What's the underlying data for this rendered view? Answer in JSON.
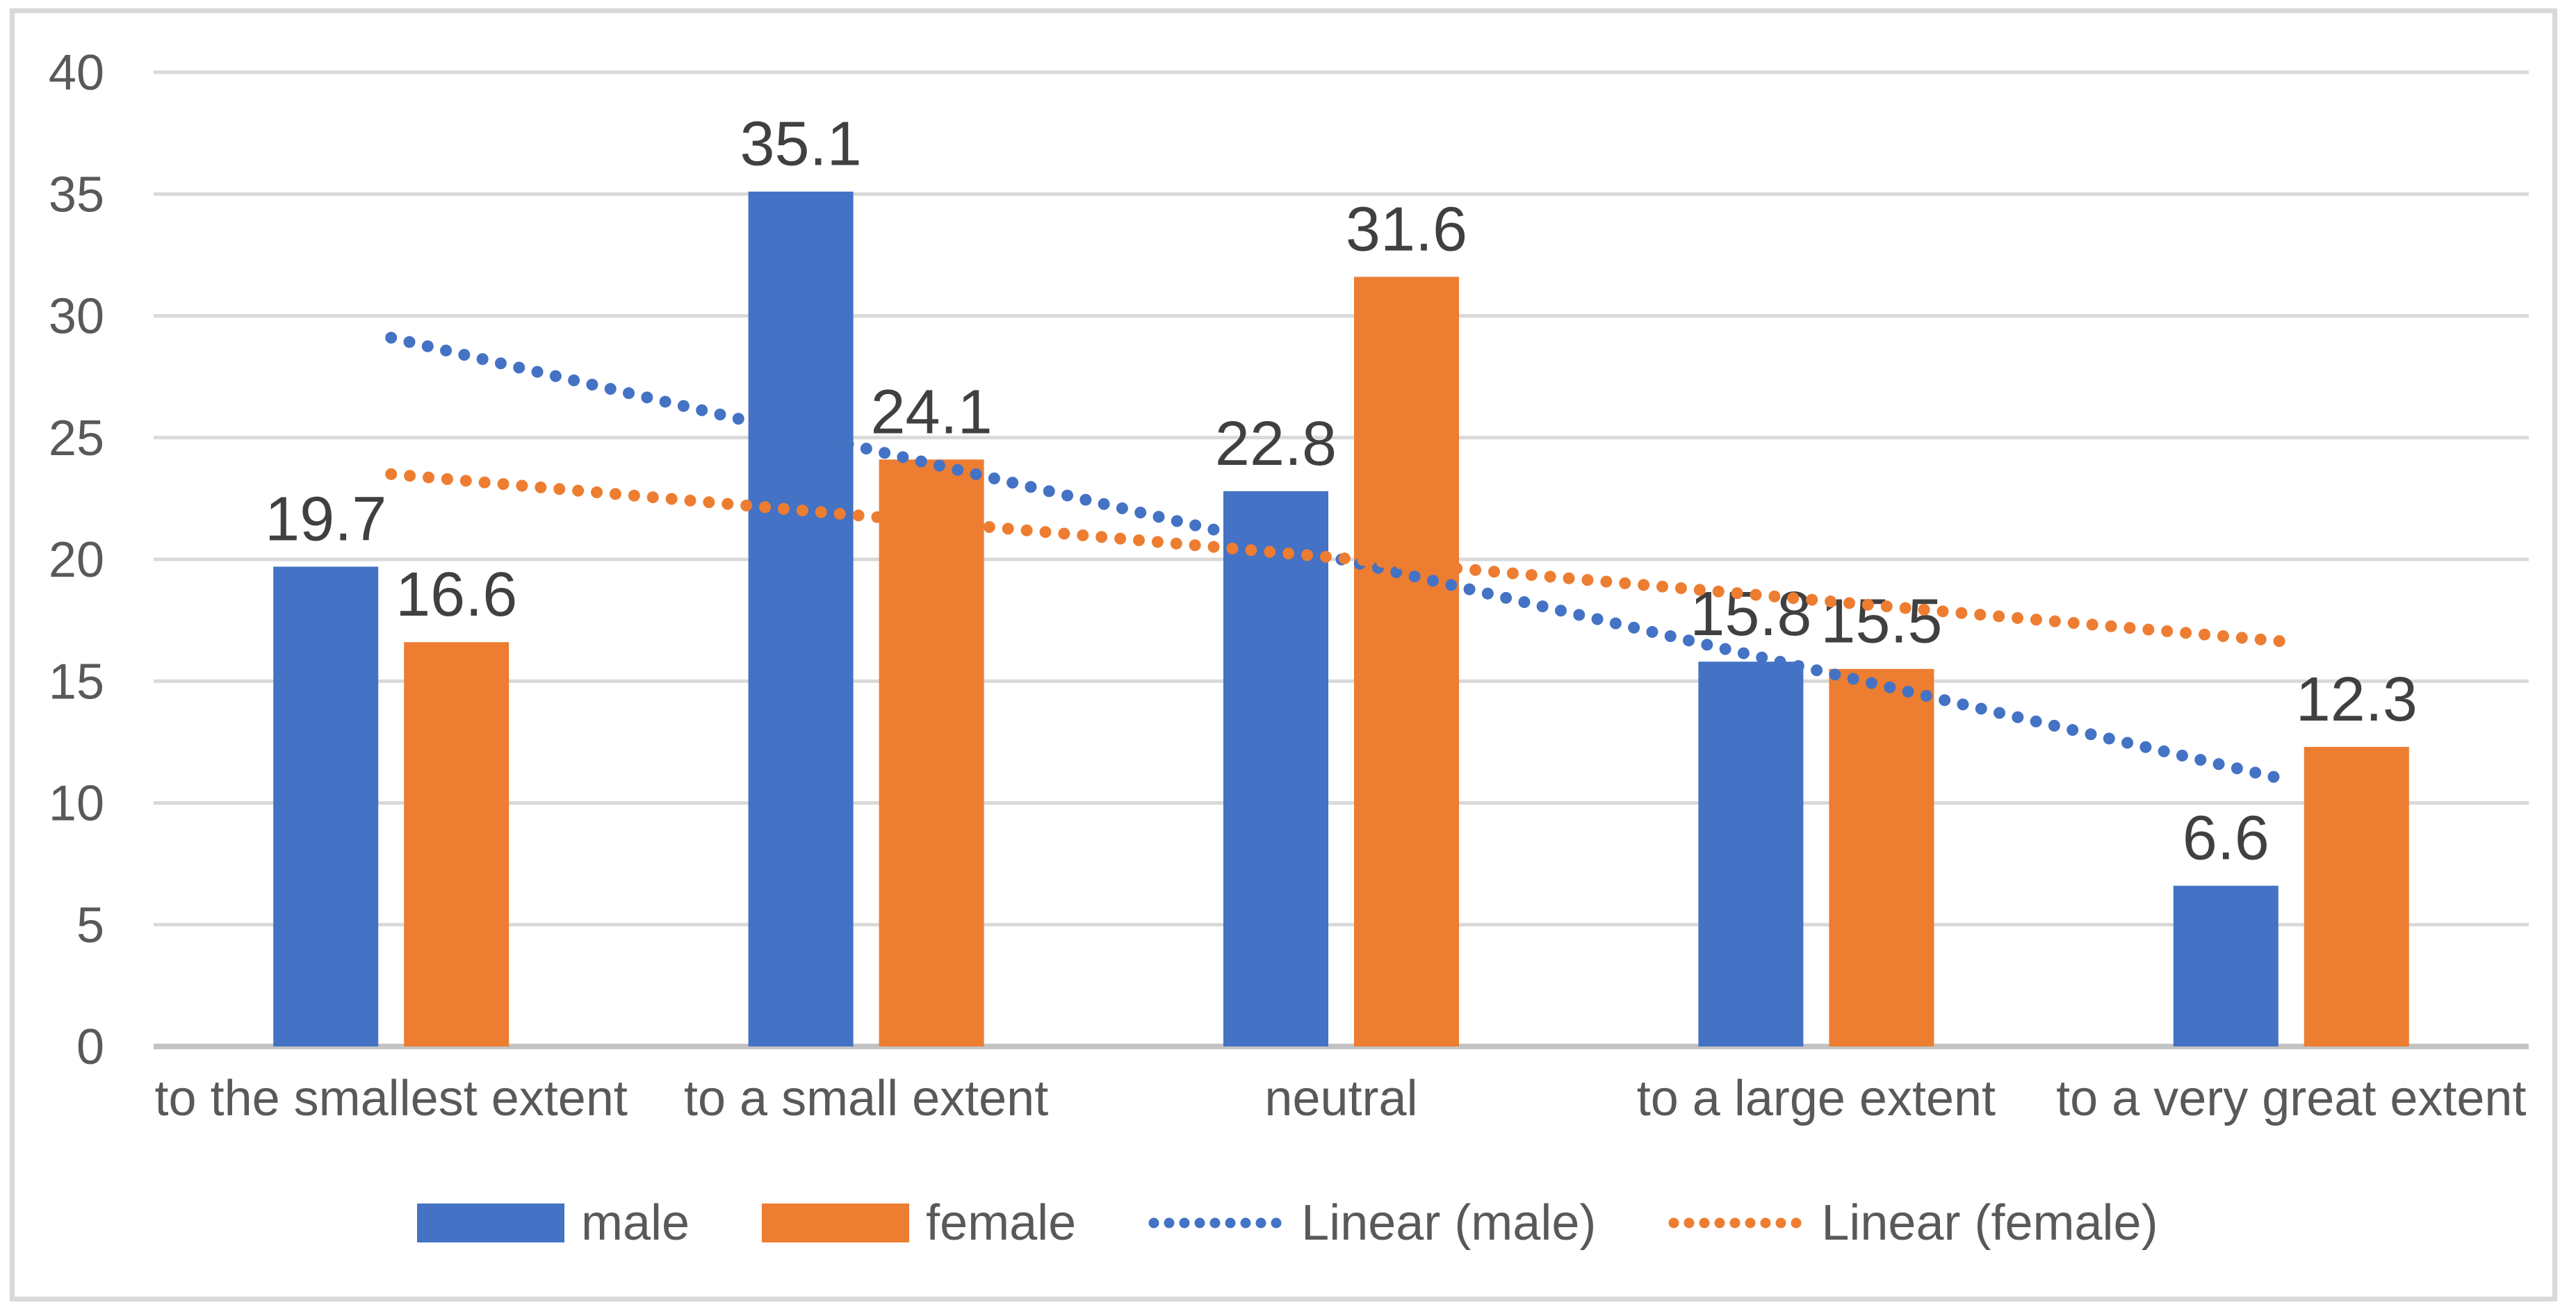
{
  "chart_data": {
    "type": "bar",
    "title": "",
    "categories": [
      "to the smallest extent",
      "to a small extent",
      "neutral",
      "to a large extent",
      "to a very great extent"
    ],
    "series": [
      {
        "name": "male",
        "color": "#4472C4",
        "values": [
          19.7,
          35.1,
          22.8,
          15.8,
          6.6
        ]
      },
      {
        "name": "female",
        "color": "#ED7D31",
        "values": [
          16.6,
          24.1,
          31.6,
          15.5,
          12.3
        ]
      }
    ],
    "data_labels": {
      "male": [
        "19.7",
        "35.1",
        "22.8",
        "15.8",
        "6.6"
      ],
      "female": [
        "16.6",
        "24.1",
        "31.6",
        "15.5",
        "12.3"
      ]
    },
    "trendlines": [
      {
        "name": "Linear (male)",
        "series": "male",
        "color": "#4472C4",
        "style": "dotted",
        "y_start": 29.1,
        "y_end": 10.9
      },
      {
        "name": "Linear (female)",
        "series": "female",
        "color": "#ED7D31",
        "style": "dotted",
        "y_start": 23.5,
        "y_end": 16.6
      }
    ],
    "xlabel": "",
    "ylabel": "",
    "ylim": [
      0,
      40
    ],
    "ytick_step": 5,
    "yticks": [
      "0",
      "5",
      "10",
      "15",
      "20",
      "25",
      "30",
      "35",
      "40"
    ],
    "grid": true,
    "legend_position": "bottom",
    "legend": [
      "male",
      "female",
      "Linear (male)",
      "Linear (female)"
    ],
    "colors": {
      "grid": "#D9D9D9",
      "axis_line": "#C3C3C3",
      "tick_label": "#595959",
      "category_label": "#595959",
      "data_label": "#404040",
      "legend_label": "#595959",
      "frame_border": "#D9D9D9",
      "background": "#FFFFFF"
    }
  }
}
